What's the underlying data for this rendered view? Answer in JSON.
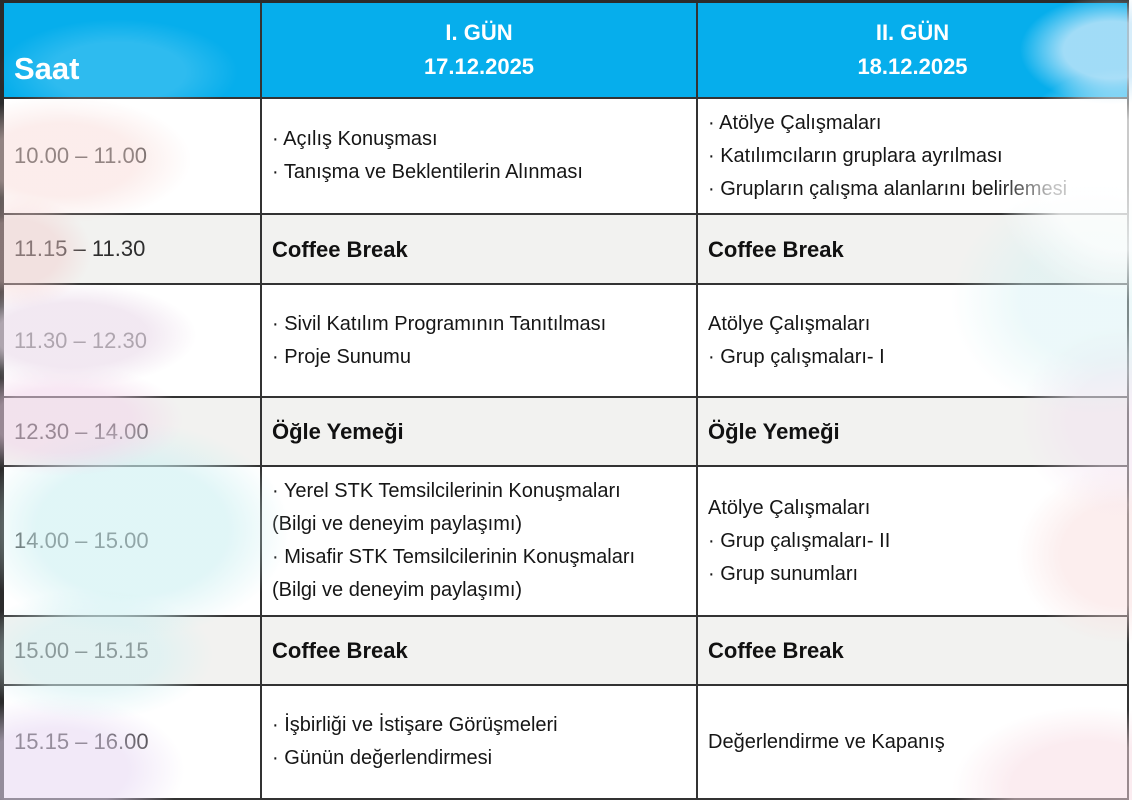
{
  "table": {
    "header": {
      "time_col_label": "Saat",
      "day1": {
        "title": "I. GÜN",
        "date": "17.12.2025"
      },
      "day2": {
        "title": "II. GÜN",
        "date": "18.12.2025"
      }
    },
    "rows": [
      {
        "time": "10.00 – 11.00",
        "type": "session",
        "day1_lines": [
          "· Açılış Konuşması",
          "· Tanışma ve Beklentilerin Alınması"
        ],
        "day2_lines": [
          "· Atölye Çalışmaları",
          "· Katılımcıların gruplara ayrılması",
          "· Grupların çalışma alanlarını belirlemesi"
        ]
      },
      {
        "time": "11.15 – 11.30",
        "type": "break",
        "day1_lines": [
          "Coffee Break"
        ],
        "day2_lines": [
          "Coffee Break"
        ]
      },
      {
        "time": "11.30 – 12.30",
        "type": "session",
        "day1_lines": [
          "· Sivil Katılım Programının Tanıtılması",
          "· Proje Sunumu"
        ],
        "day2_lines": [
          "Atölye Çalışmaları",
          "· Grup çalışmaları- I"
        ]
      },
      {
        "time": "12.30 – 14.00",
        "type": "break",
        "day1_lines": [
          "Öğle Yemeği"
        ],
        "day2_lines": [
          "Öğle Yemeği"
        ]
      },
      {
        "time": "14.00 – 15.00",
        "type": "session",
        "day1_lines": [
          "· Yerel STK Temsilcilerinin Konuşmaları",
          "(Bilgi ve deneyim paylaşımı)",
          "· Misafir STK Temsilcilerinin Konuşmaları",
          "(Bilgi ve deneyim paylaşımı)"
        ],
        "day2_lines": [
          "Atölye Çalışmaları",
          "· Grup çalışmaları- II",
          "· Grup sunumları"
        ]
      },
      {
        "time": "15.00 – 15.15",
        "type": "break",
        "day1_lines": [
          "Coffee Break"
        ],
        "day2_lines": [
          "Coffee Break"
        ]
      },
      {
        "time": "15.15 – 16.00",
        "type": "session",
        "day1_lines": [
          "· İşbirliği ve İstişare Görüşmeleri",
          "· Günün değerlendirmesi"
        ],
        "day2_lines": [
          "Değerlendirme ve Kapanış"
        ]
      }
    ],
    "colors": {
      "header_bg": "#06aeec",
      "header_text": "#ffffff",
      "break_row_bg": "#f2f2f0",
      "session_row_bg": "#ffffff",
      "border": "#333333",
      "time_text": "#2e2e2e",
      "body_text": "#161616",
      "wash_palette": [
        "#f8dbd8",
        "#f3cdcd",
        "#ecdeec",
        "#f2d4ea",
        "#cef0f2",
        "#e7d8f3",
        "#cde9fa",
        "#f9e0e0",
        "#f3e2f0"
      ]
    }
  }
}
